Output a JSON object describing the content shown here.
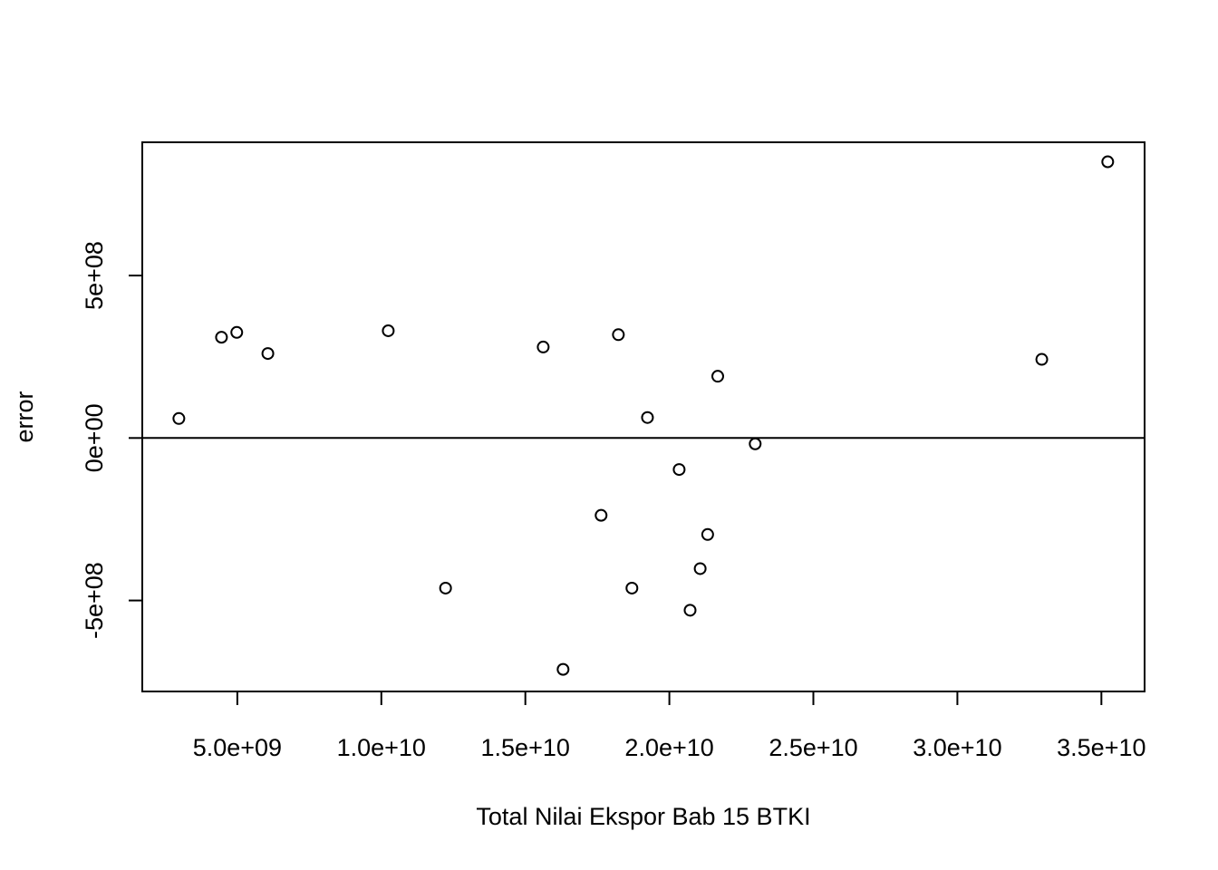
{
  "chart_data": {
    "type": "scatter",
    "title": "",
    "xlabel": "Total Nilai Ekspor Bab 15 BTKI",
    "ylabel": "error",
    "xlim": [
      1700000000,
      36500000000
    ],
    "ylim": [
      -780000000,
      910000000
    ],
    "x_ticks": [
      {
        "value": 5000000000,
        "label": "5.0e+09"
      },
      {
        "value": 10000000000,
        "label": "1.0e+10"
      },
      {
        "value": 15000000000,
        "label": "1.5e+10"
      },
      {
        "value": 20000000000,
        "label": "2.0e+10"
      },
      {
        "value": 25000000000,
        "label": "2.5e+10"
      },
      {
        "value": 30000000000,
        "label": "3.0e+10"
      },
      {
        "value": 35000000000,
        "label": "3.5e+10"
      }
    ],
    "y_ticks": [
      {
        "value": -500000000,
        "label": "-5e+08"
      },
      {
        "value": 0,
        "label": "0e+00"
      },
      {
        "value": 500000000,
        "label": "5e+08"
      }
    ],
    "hline": 0,
    "grid": false,
    "legend": "none",
    "marker": "open-circle",
    "color": "#000000",
    "points": [
      {
        "x": 2970000000,
        "y": 60000000
      },
      {
        "x": 4450000000,
        "y": 310000000
      },
      {
        "x": 4980000000,
        "y": 325000000
      },
      {
        "x": 6060000000,
        "y": 260000000
      },
      {
        "x": 10240000000,
        "y": 330000000
      },
      {
        "x": 12230000000,
        "y": -462000000
      },
      {
        "x": 15620000000,
        "y": 280000000
      },
      {
        "x": 16310000000,
        "y": -712000000
      },
      {
        "x": 17630000000,
        "y": -238000000
      },
      {
        "x": 18230000000,
        "y": 318000000
      },
      {
        "x": 18700000000,
        "y": -462000000
      },
      {
        "x": 19240000000,
        "y": 63000000
      },
      {
        "x": 20340000000,
        "y": -97000000
      },
      {
        "x": 20720000000,
        "y": -530000000
      },
      {
        "x": 21070000000,
        "y": -402000000
      },
      {
        "x": 21330000000,
        "y": -297000000
      },
      {
        "x": 21680000000,
        "y": 190000000
      },
      {
        "x": 22980000000,
        "y": -18000000
      },
      {
        "x": 32930000000,
        "y": 242000000
      },
      {
        "x": 35220000000,
        "y": 850000000
      }
    ]
  }
}
